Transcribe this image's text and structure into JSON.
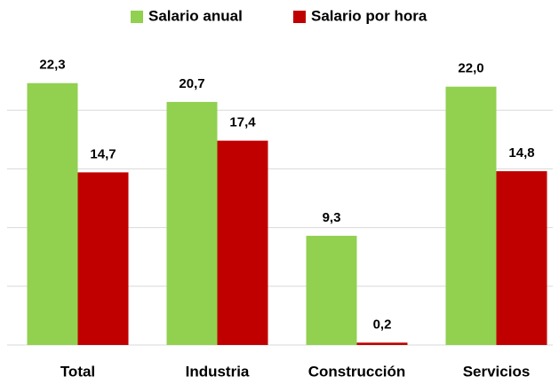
{
  "chart_data": {
    "type": "bar",
    "categories": [
      "Total",
      "Industria",
      "Construcción",
      "Servicios"
    ],
    "series": [
      {
        "name": "Salario anual",
        "color": "#92d050",
        "values": [
          22.3,
          20.7,
          9.3,
          22.0
        ],
        "value_labels": [
          "22,3",
          "20,7",
          "9,3",
          "22,0"
        ]
      },
      {
        "name": "Salario por hora",
        "color": "#c00000",
        "values": [
          14.7,
          17.4,
          0.2,
          14.8
        ],
        "value_labels": [
          "14,7",
          "17,4",
          "0,2",
          "14,8"
        ]
      }
    ],
    "ylim": [
      0,
      25
    ],
    "yticks": [
      0,
      5,
      10,
      15,
      20
    ],
    "grid": true,
    "legend": "top"
  }
}
